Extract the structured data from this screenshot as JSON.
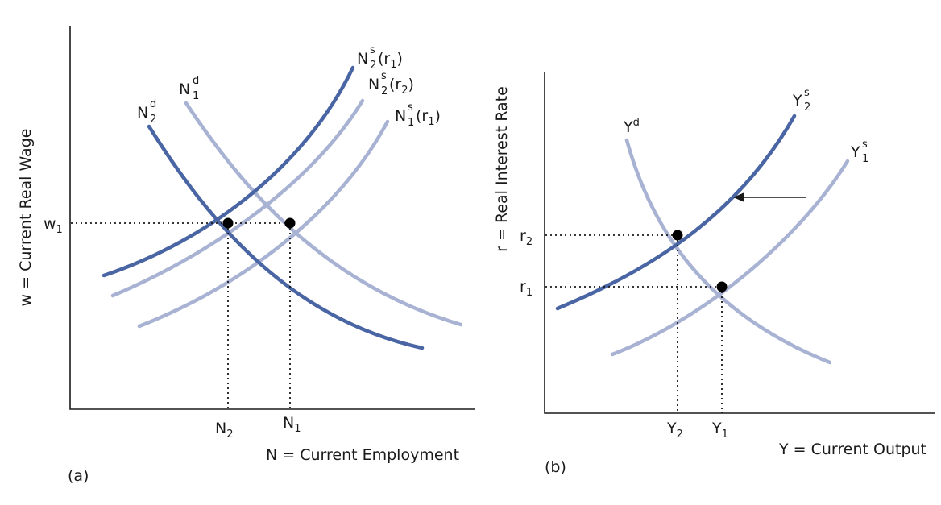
{
  "colors": {
    "dark": "#4a65a3",
    "light": "#a8b2d3",
    "axis": "#1a1a1a",
    "dot": "#000000"
  },
  "panel_a": {
    "letter": "(a)",
    "y_axis_label": "w = Current Real Wage",
    "x_axis_label": "N = Current Employment",
    "w1": {
      "base": "w",
      "sub": "1"
    },
    "n2": {
      "base": "N",
      "sub": "2"
    },
    "n1": {
      "base": "N",
      "sub": "1"
    },
    "curves": {
      "nd2": {
        "base": "N",
        "sup": "d",
        "sub": "2"
      },
      "nd1": {
        "base": "N",
        "sup": "d",
        "sub": "1"
      },
      "ns2r1": {
        "base": "N",
        "sup": "s",
        "sub": "2",
        "tail_open": "(r",
        "tail_sub": "1",
        "tail_close": ")"
      },
      "ns2r2": {
        "base": "N",
        "sup": "s",
        "sub": "2",
        "tail_open": "(r",
        "tail_sub": "2",
        "tail_close": ")"
      },
      "ns1r1": {
        "base": "N",
        "sup": "s",
        "sub": "1",
        "tail_open": "(r",
        "tail_sub": "1",
        "tail_close": ")"
      }
    }
  },
  "panel_b": {
    "letter": "(b)",
    "y_axis_label": "r = Real Interest Rate",
    "x_axis_label": "Y = Current Output",
    "r2": {
      "base": "r",
      "sub": "2"
    },
    "r1": {
      "base": "r",
      "sub": "1"
    },
    "y2": {
      "base": "Y",
      "sub": "2"
    },
    "y1": {
      "base": "Y",
      "sub": "1"
    },
    "curves": {
      "yd": {
        "base": "Y",
        "sup": "d"
      },
      "ys2": {
        "base": "Y",
        "sup": "s",
        "sub": "2"
      },
      "ys1": {
        "base": "Y",
        "sup": "s",
        "sub": "1"
      }
    }
  }
}
